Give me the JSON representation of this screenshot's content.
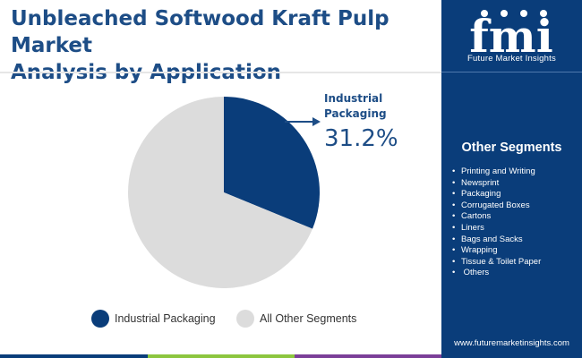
{
  "header": {
    "title_line1": "Unbleached Softwood Kraft Pulp Market",
    "title_line2": "Analysis by Application"
  },
  "brand": {
    "logo_letters": "fmi",
    "name": "Future Market Insights",
    "website": "www.futuremarketinsights.com",
    "panel_color": "#0a3d7a"
  },
  "other_segments": {
    "title": "Other Segments",
    "items": [
      "Printing and Writing",
      "Newsprint",
      "Packaging",
      "Corrugated Boxes",
      "Cartons",
      "Liners",
      "Bags and Sacks",
      "Wrapping",
      "Tissue & Toilet Paper",
      " Others"
    ]
  },
  "callout": {
    "label_line1": "Industrial",
    "label_line2": "Packaging",
    "value": "31.2%"
  },
  "chart_data": {
    "type": "pie",
    "slices": [
      {
        "name": "Industrial Packaging",
        "value": 31.2,
        "color": "#0a3d7a"
      },
      {
        "name": "All Other Segments",
        "value": 68.8,
        "color": "#dcdcdc"
      }
    ],
    "legend_position": "bottom"
  },
  "bottom_bar_colors": [
    "#0a3d7a",
    "#8cc63f",
    "#7b3f98"
  ]
}
